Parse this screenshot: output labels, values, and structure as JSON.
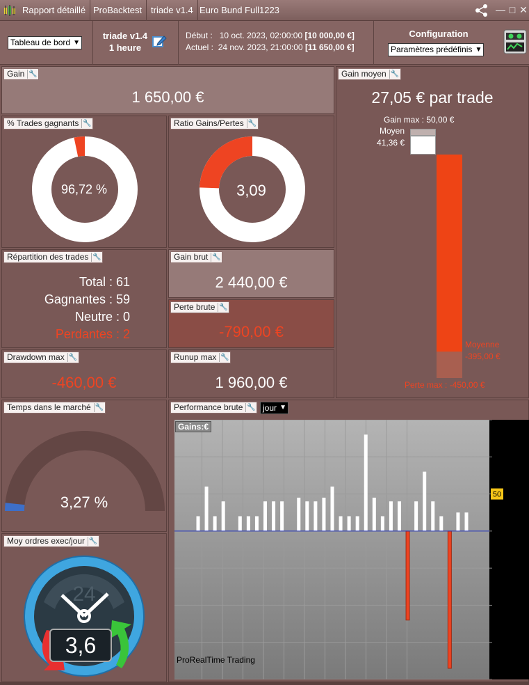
{
  "titlebar": {
    "segments": [
      "Rapport détaillé",
      "ProBacktest",
      "triade v1.4",
      "Euro Bund Full1223"
    ]
  },
  "header": {
    "view_select": "Tableau de bord",
    "strategy_name": "triade v1.4",
    "timeframe": "1 heure",
    "debut_label": "Début :",
    "debut_date": "10 oct. 2023, 02:00:00",
    "debut_capital": "[10 000,00 €]",
    "actuel_label": "Actuel :",
    "actuel_date": "24 nov. 2023, 21:00:00",
    "actuel_capital": "[11 650,00 €]",
    "config_label": "Configuration",
    "config_select": "Paramètres prédéfinis"
  },
  "panels": {
    "gain": {
      "title": "Gain",
      "value": "1 650,00 €"
    },
    "trades_gagnants": {
      "title": "% Trades gagnants",
      "value": "96,72 %",
      "fraction": 0.9672
    },
    "ratio": {
      "title": "Ratio Gains/Pertes",
      "value": "3,09",
      "fraction": 0.7555
    },
    "gain_moyen": {
      "title": "Gain moyen",
      "value": "27,05 € par trade",
      "gain_max_label": "Gain max : 50,00 €",
      "moyen_label": "Moyen",
      "moyen_value": "41,36 €",
      "moyenne_label": "Moyenne",
      "moyenne_value": "-395,00 €",
      "perte_max_label": "Perte max : -450,00 €"
    },
    "repartition": {
      "title": "Répartition des trades",
      "total": "Total : 61",
      "gagnantes": "Gagnantes : 59",
      "neutre": "Neutre : 0",
      "perdantes": "Perdantes : 2"
    },
    "gain_brut": {
      "title": "Gain brut",
      "value": "2 440,00 €"
    },
    "perte_brute": {
      "title": "Perte brute",
      "value": "-790,00 €"
    },
    "drawdown": {
      "title": "Drawdown max",
      "value": "-460,00 €"
    },
    "runup": {
      "title": "Runup max",
      "value": "1 960,00 €"
    },
    "temps_marche": {
      "title": "Temps dans le marché",
      "value": "3,27 %",
      "fraction": 0.0327
    },
    "perf_brute": {
      "title": "Performance brute",
      "period_select": "jour"
    },
    "moy_ordres": {
      "title": "Moy ordres exec/jour",
      "clock_label": "24",
      "value": "3,6"
    }
  },
  "chart_data": {
    "type": "bar",
    "title": "Gains:€",
    "watermark": "ProRealTime Trading",
    "y_marker_label": "50",
    "values": [
      20,
      60,
      20,
      40,
      0,
      20,
      20,
      20,
      40,
      40,
      40,
      0,
      45,
      40,
      40,
      45,
      60,
      20,
      20,
      20,
      130,
      45,
      20,
      40,
      40,
      -120,
      40,
      80,
      40,
      20,
      -185,
      25,
      25
    ],
    "ylim": [
      -200,
      150
    ]
  },
  "colors": {
    "accent_red": "#ee4422",
    "panel_bg": "#795856",
    "bar_positive": "#ffffff",
    "bar_negative": "#ee4422"
  }
}
